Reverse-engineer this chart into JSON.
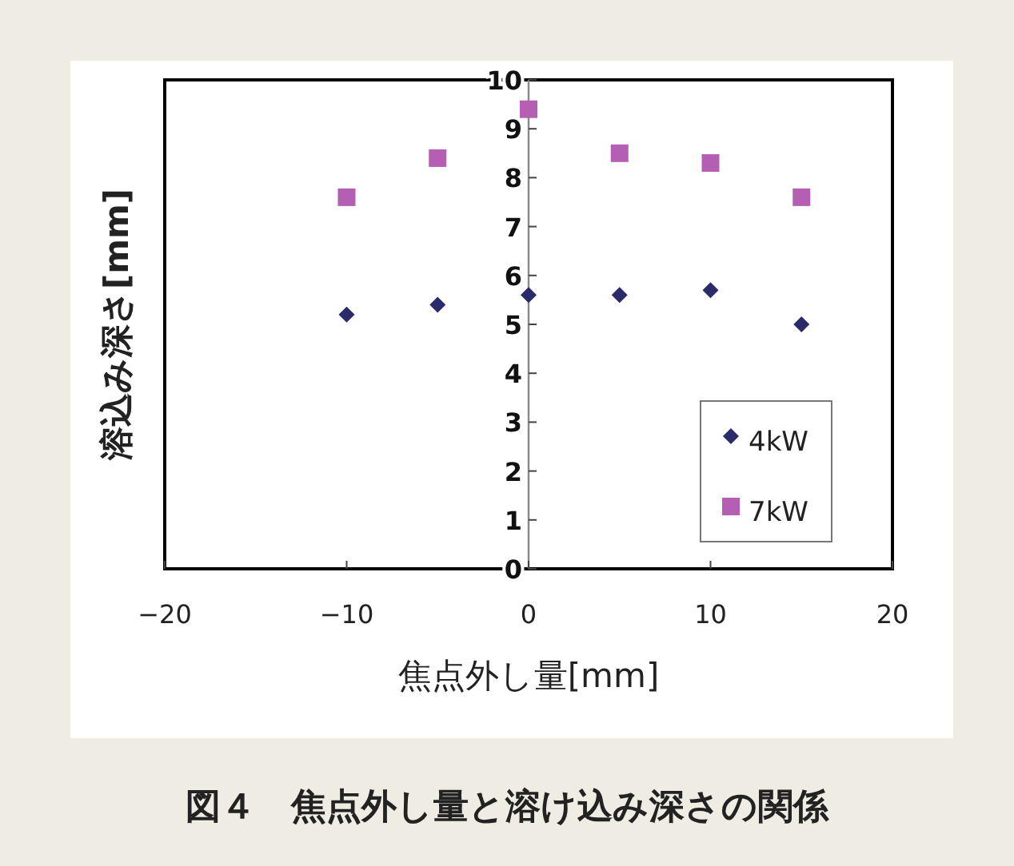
{
  "chart_data": {
    "type": "scatter",
    "xlabel": "焦点外し量[mm]",
    "ylabel": "溶込み深さ[mm]",
    "annotations": [
      "図４　焦点外し量と溶け込み深さの関係"
    ],
    "x": [
      -10,
      -5,
      0,
      5,
      10,
      15
    ],
    "series": [
      {
        "name": "4kW",
        "color": "#2b2a6b",
        "marker": "diamond",
        "values": [
          5.2,
          5.4,
          5.6,
          5.6,
          5.7,
          5.0
        ]
      },
      {
        "name": "7kW",
        "color": "#b45fb4",
        "marker": "square",
        "values": [
          7.6,
          8.4,
          9.4,
          8.5,
          8.3,
          7.6
        ]
      }
    ],
    "xlim": [
      -20,
      20
    ],
    "xticks": [
      -20,
      -10,
      0,
      10,
      20
    ],
    "ylim": [
      0,
      10
    ],
    "yticks": [
      0,
      1,
      2,
      3,
      4,
      5,
      6,
      7,
      8,
      9,
      10
    ],
    "grid": false,
    "legend": "bottom right"
  }
}
